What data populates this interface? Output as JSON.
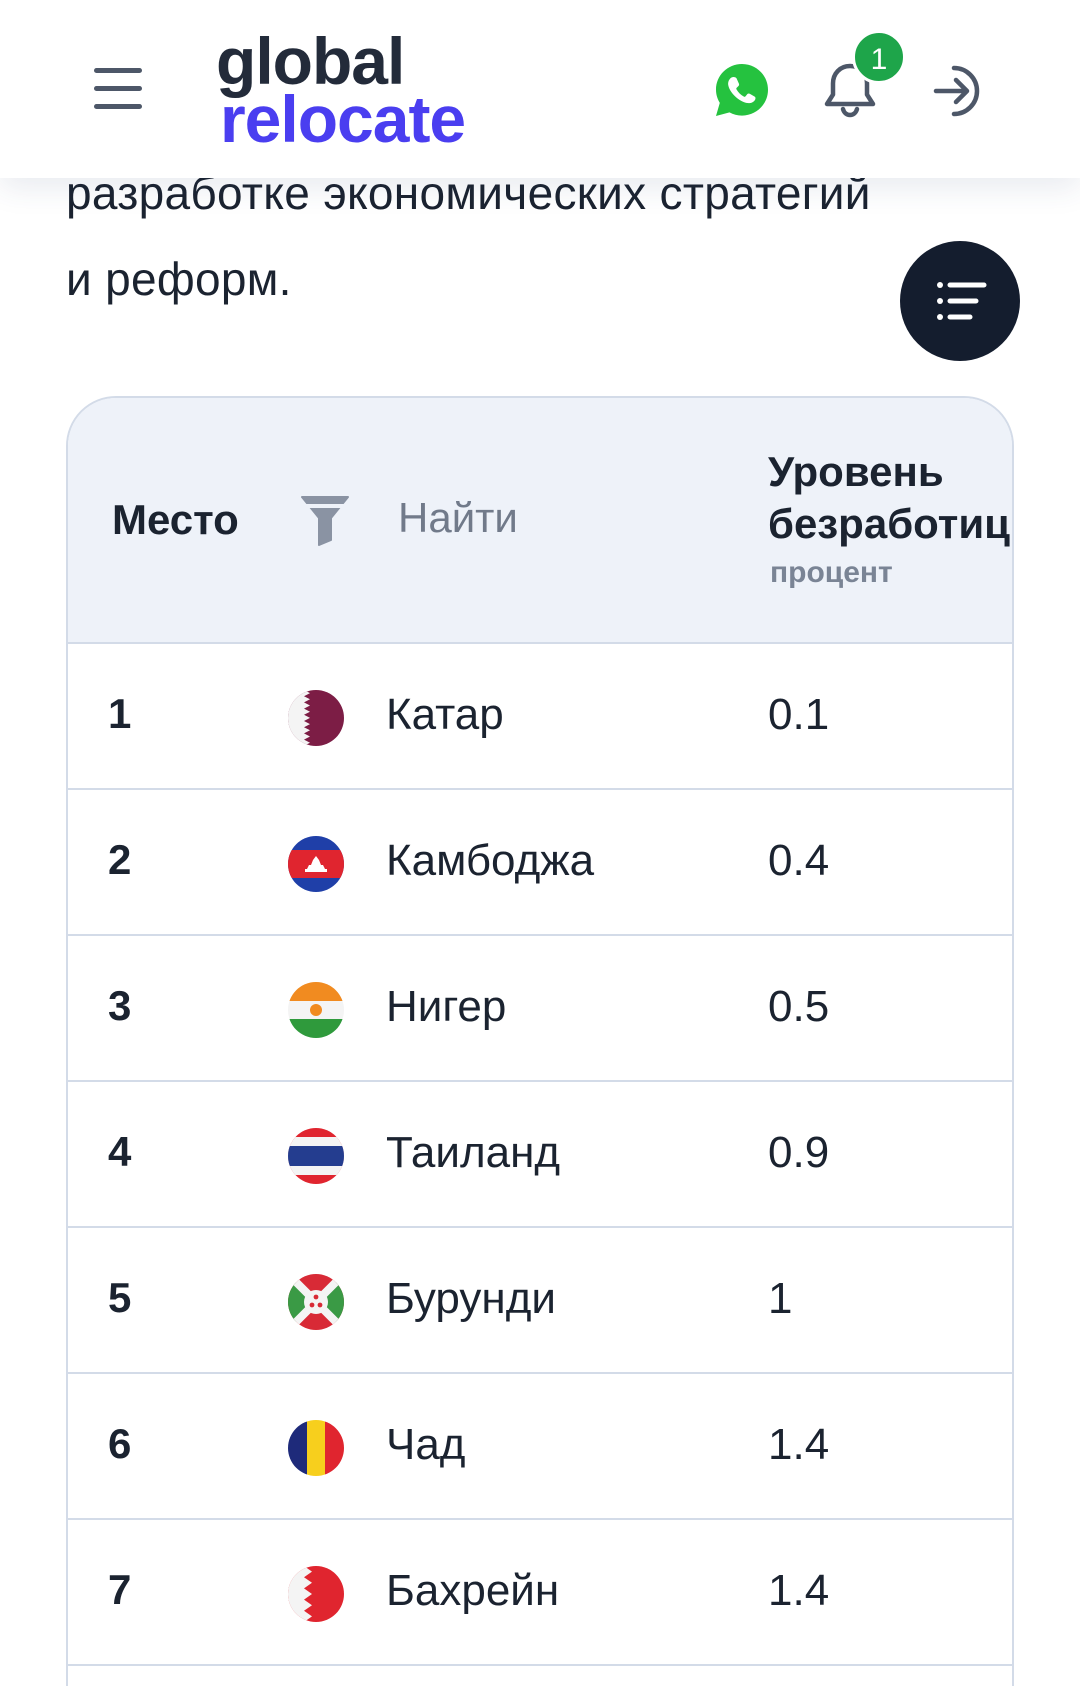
{
  "header": {
    "logo_line1": "global",
    "logo_line2": "relocate",
    "notification_count": "1"
  },
  "intro": {
    "line1": "разработке экономических стратегий",
    "line2": "и реформ."
  },
  "table": {
    "col_place": "Место",
    "search_placeholder": "Найти",
    "col_metric_line1": "Уровень",
    "col_metric_line2": "безработицы",
    "col_metric_unit": "процент",
    "rows": [
      {
        "rank": "1",
        "country": "Катар",
        "value": "0.1",
        "flag": "qatar-flag-icon"
      },
      {
        "rank": "2",
        "country": "Камбоджа",
        "value": "0.4",
        "flag": "cambodia-flag-icon"
      },
      {
        "rank": "3",
        "country": "Нигер",
        "value": "0.5",
        "flag": "niger-flag-icon"
      },
      {
        "rank": "4",
        "country": "Таиланд",
        "value": "0.9",
        "flag": "thailand-flag-icon"
      },
      {
        "rank": "5",
        "country": "Бурунди",
        "value": "1",
        "flag": "burundi-flag-icon"
      },
      {
        "rank": "6",
        "country": "Чад",
        "value": "1.4",
        "flag": "chad-flag-icon"
      },
      {
        "rank": "7",
        "country": "Бахрейн",
        "value": "1.4",
        "flag": "bahrain-flag-icon"
      }
    ]
  },
  "colors": {
    "brand_dark": "#232b3a",
    "brand_accent": "#4a3ef0",
    "badge_green": "#1ea54a",
    "table_header_bg": "#eef2f9"
  }
}
